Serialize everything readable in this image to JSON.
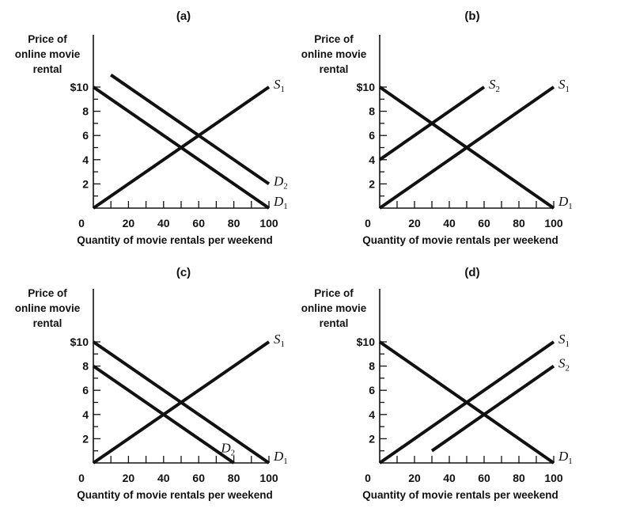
{
  "chart_data": [
    {
      "type": "line",
      "title": "(a)",
      "ylabel": [
        "Price of",
        "online movie",
        "rental"
      ],
      "xlabel": "Quantity of movie rentals per weekend",
      "x_ticks": [
        0,
        20,
        40,
        60,
        80,
        100
      ],
      "y_ticks": [
        "",
        "2",
        "4",
        "6",
        "8",
        "$10"
      ],
      "xlim": [
        0,
        100
      ],
      "ylim": [
        0,
        10
      ],
      "series": [
        {
          "name": "S",
          "sub": "1",
          "points": [
            [
              0,
              0
            ],
            [
              100,
              10
            ]
          ],
          "label_at": [
            100,
            10
          ]
        },
        {
          "name": "D",
          "sub": "1",
          "points": [
            [
              0,
              10
            ],
            [
              100,
              0
            ]
          ],
          "label_at": [
            100,
            0
          ]
        },
        {
          "name": "D",
          "sub": "2",
          "points": [
            [
              10,
              11
            ],
            [
              100,
              2
            ]
          ],
          "label_at": [
            100,
            2
          ]
        }
      ]
    },
    {
      "type": "line",
      "title": "(b)",
      "ylabel": [
        "Price of",
        "online movie",
        "rental"
      ],
      "xlabel": "Quantity of movie rentals per weekend",
      "x_ticks": [
        0,
        20,
        40,
        60,
        80,
        100
      ],
      "y_ticks": [
        "",
        "2",
        "4",
        "6",
        "8",
        "$10"
      ],
      "xlim": [
        0,
        100
      ],
      "ylim": [
        0,
        10
      ],
      "series": [
        {
          "name": "S",
          "sub": "1",
          "points": [
            [
              0,
              0
            ],
            [
              100,
              10
            ]
          ],
          "label_at": [
            100,
            10
          ]
        },
        {
          "name": "S",
          "sub": "2",
          "points": [
            [
              0,
              4
            ],
            [
              60,
              10
            ]
          ],
          "label_at": [
            60,
            10
          ]
        },
        {
          "name": "D",
          "sub": "1",
          "points": [
            [
              0,
              10
            ],
            [
              100,
              0
            ]
          ],
          "label_at": [
            100,
            0
          ]
        }
      ]
    },
    {
      "type": "line",
      "title": "(c)",
      "ylabel": [
        "Price of",
        "online movie",
        "rental"
      ],
      "xlabel": "Quantity of movie rentals per weekend",
      "x_ticks": [
        0,
        20,
        40,
        60,
        80,
        100
      ],
      "y_ticks": [
        "",
        "2",
        "4",
        "6",
        "8",
        "$10"
      ],
      "xlim": [
        0,
        100
      ],
      "ylim": [
        0,
        10
      ],
      "series": [
        {
          "name": "S",
          "sub": "1",
          "points": [
            [
              0,
              0
            ],
            [
              100,
              10
            ]
          ],
          "label_at": [
            100,
            10
          ]
        },
        {
          "name": "D",
          "sub": "1",
          "points": [
            [
              0,
              10
            ],
            [
              100,
              0
            ]
          ],
          "label_at": [
            100,
            0
          ]
        },
        {
          "name": "D",
          "sub": "2",
          "points": [
            [
              0,
              8
            ],
            [
              80,
              0
            ]
          ],
          "label_at": [
            70,
            1
          ]
        }
      ]
    },
    {
      "type": "line",
      "title": "(d)",
      "ylabel": [
        "Price of",
        "online movie",
        "rental"
      ],
      "xlabel": "Quantity of movie rentals per weekend",
      "x_ticks": [
        0,
        20,
        40,
        60,
        80,
        100
      ],
      "y_ticks": [
        "",
        "2",
        "4",
        "6",
        "8",
        "$10"
      ],
      "xlim": [
        0,
        100
      ],
      "ylim": [
        0,
        10
      ],
      "series": [
        {
          "name": "S",
          "sub": "1",
          "points": [
            [
              0,
              0
            ],
            [
              100,
              10
            ]
          ],
          "label_at": [
            100,
            10
          ]
        },
        {
          "name": "S",
          "sub": "2",
          "points": [
            [
              30,
              1
            ],
            [
              100,
              8
            ]
          ],
          "label_at": [
            100,
            8
          ]
        },
        {
          "name": "D",
          "sub": "1",
          "points": [
            [
              0,
              10
            ],
            [
              100,
              0
            ]
          ],
          "label_at": [
            100,
            0
          ]
        }
      ]
    }
  ]
}
